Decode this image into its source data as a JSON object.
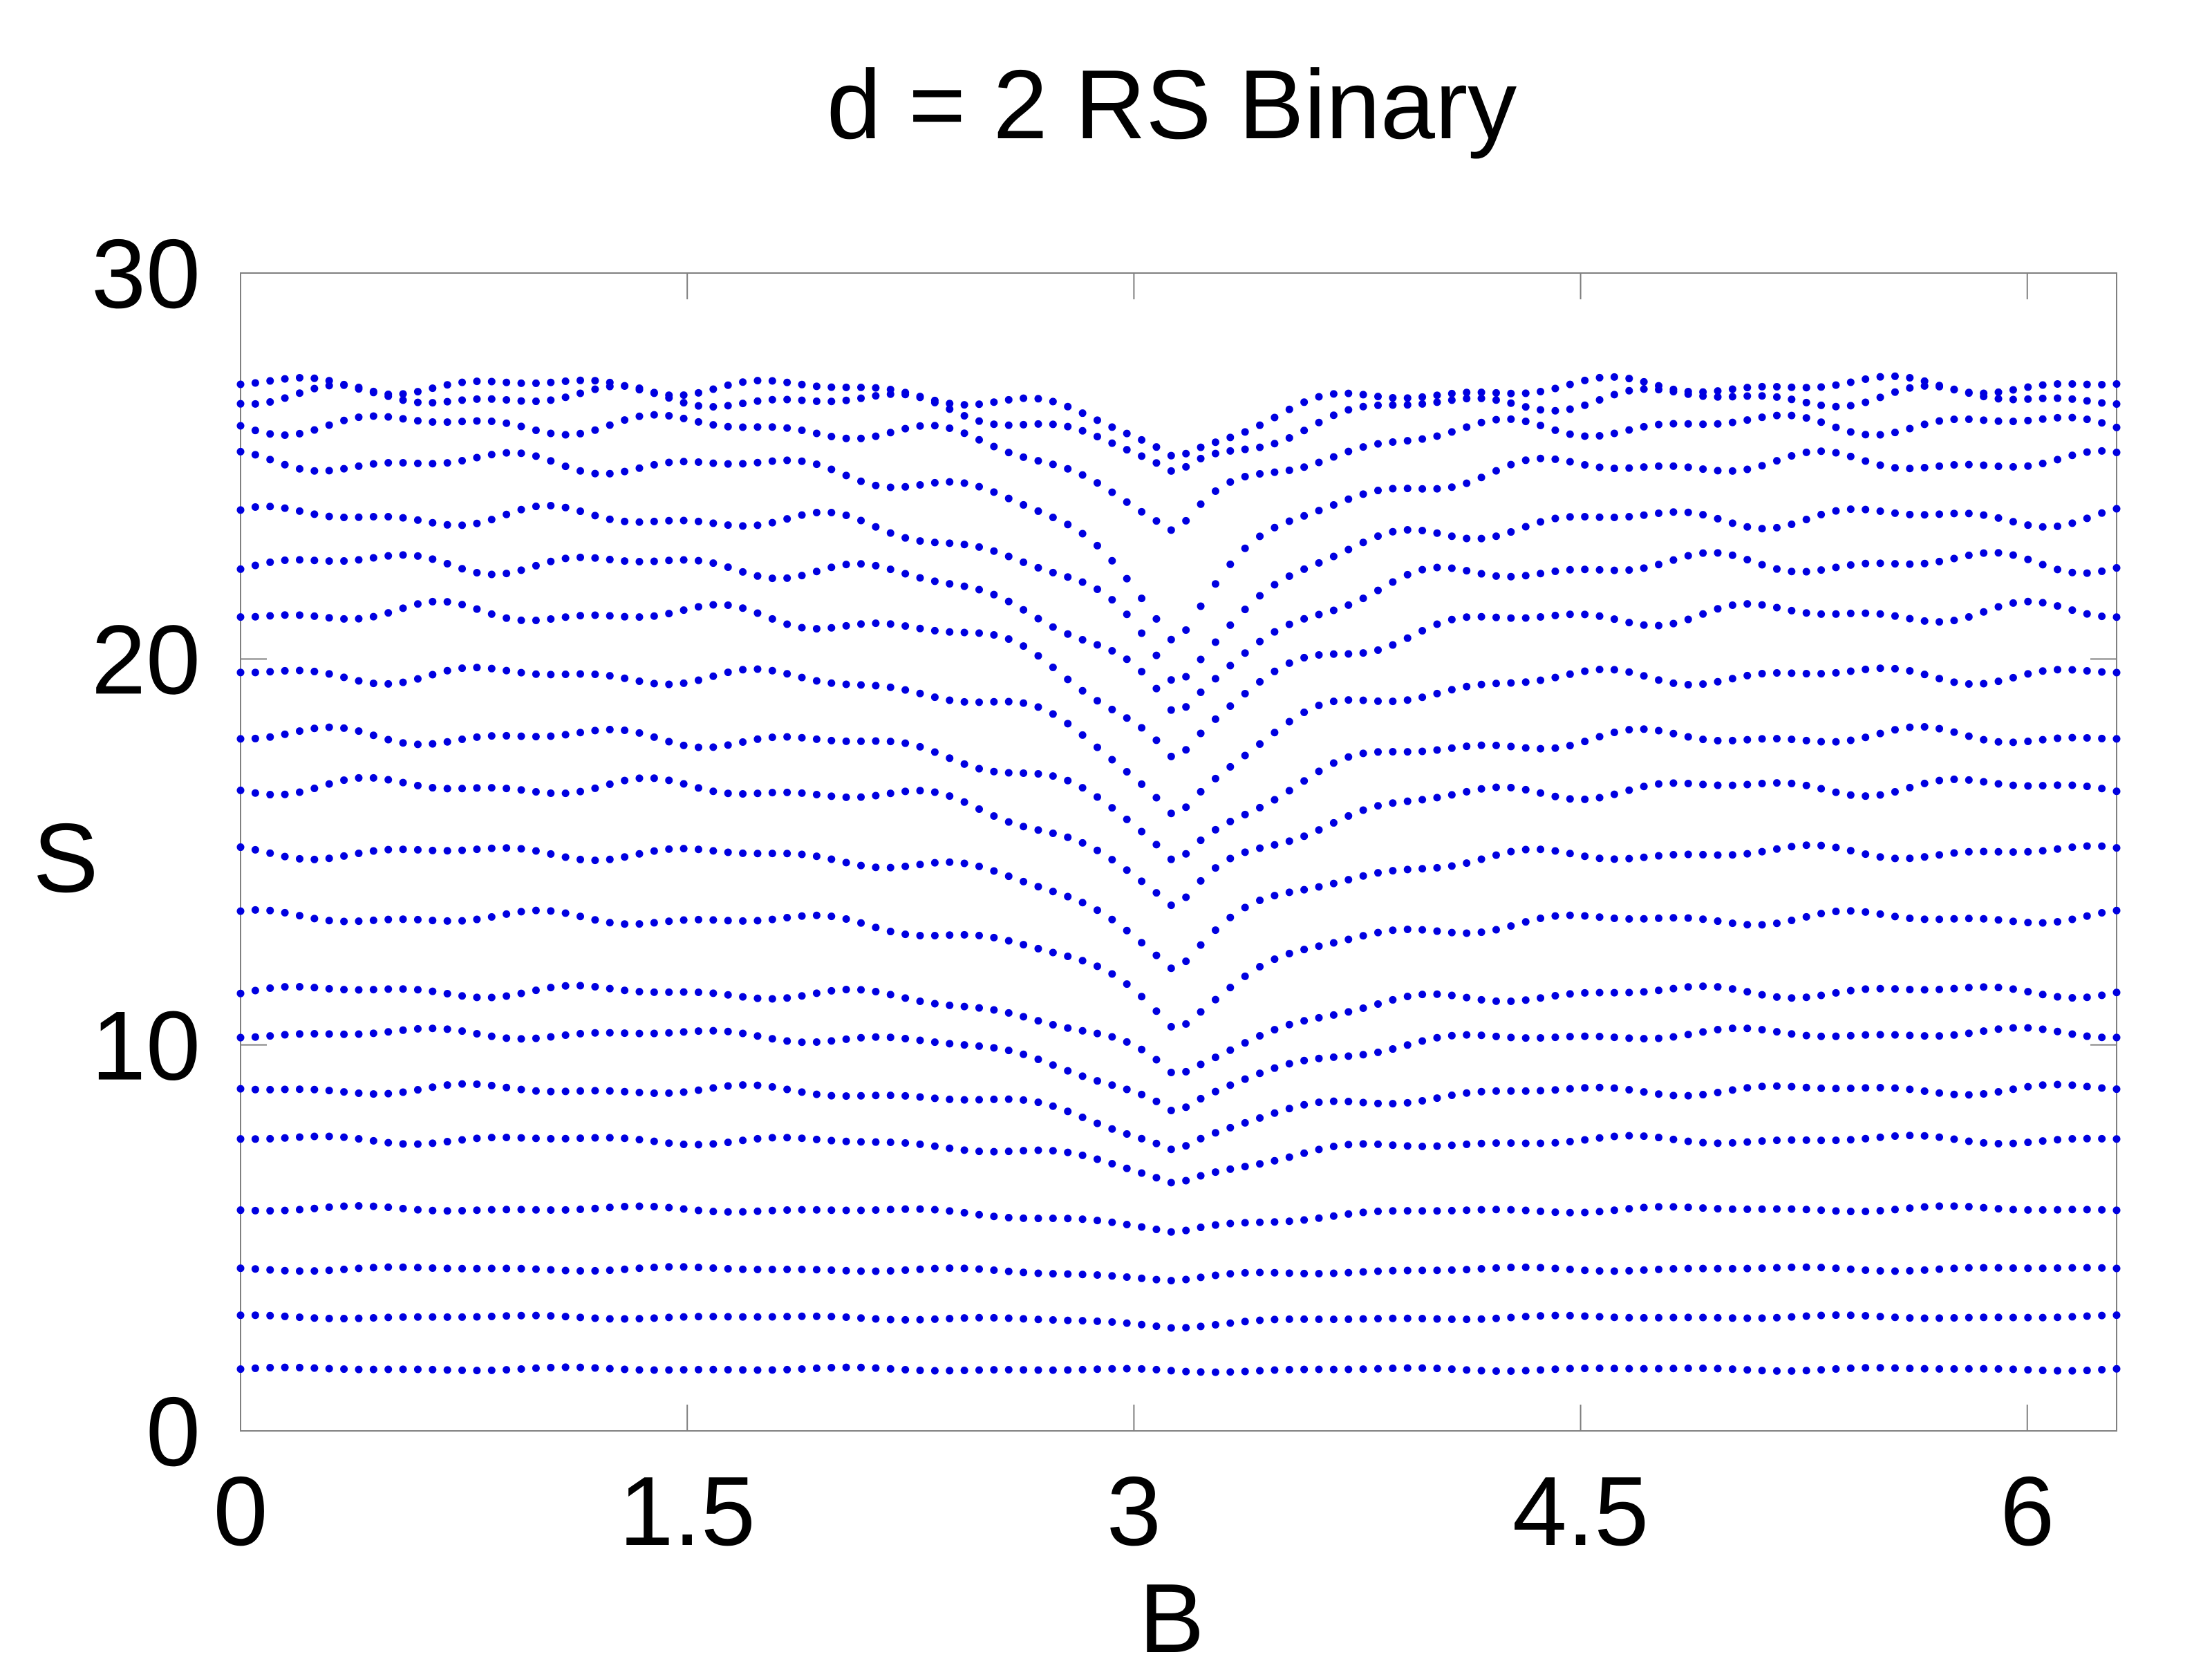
{
  "chart_data": {
    "type": "scatter",
    "title": "d = 2 RS Binary",
    "xlabel": "B",
    "ylabel": "S",
    "xlim": [
      0,
      6.3
    ],
    "ylim": [
      0,
      30
    ],
    "xticks": [
      "0",
      "1.5",
      "3",
      "4.5",
      "6"
    ],
    "xtick_values": [
      0,
      1.5,
      3,
      4.5,
      6
    ],
    "yticks": [
      "0",
      "10",
      "20",
      "30"
    ],
    "ytick_values": [
      0,
      10,
      20,
      30
    ],
    "grid": false,
    "legend": "none",
    "marker_color": "#0000e0",
    "n_points_per_band": 128,
    "bands": [
      {
        "level": 1.6,
        "dip": 0.05,
        "wiggle": 0.05
      },
      {
        "level": 2.95,
        "dip": 0.25,
        "wiggle": 0.05
      },
      {
        "level": 4.2,
        "dip": 0.3,
        "wiggle": 0.06
      },
      {
        "level": 5.75,
        "dip": 0.65,
        "wiggle": 0.08
      },
      {
        "level": 7.55,
        "dip": 1.15,
        "wiggle": 0.12
      },
      {
        "level": 8.85,
        "dip": 1.6,
        "wiggle": 0.15
      },
      {
        "level": 10.3,
        "dip": 2.2,
        "wiggle": 0.15
      },
      {
        "level": 11.4,
        "dip": 2.3,
        "wiggle": 0.18
      },
      {
        "level": 13.3,
        "dip": 2.8,
        "wiggle": 0.2
      },
      {
        "level": 15.0,
        "dip": 3.0,
        "wiggle": 0.2
      },
      {
        "level": 16.7,
        "dip": 3.3,
        "wiggle": 0.25
      },
      {
        "level": 18.0,
        "dip": 3.4,
        "wiggle": 0.25
      },
      {
        "level": 19.6,
        "dip": 3.7,
        "wiggle": 0.25
      },
      {
        "level": 21.2,
        "dip": 4.0,
        "wiggle": 0.3
      },
      {
        "level": 22.5,
        "dip": 4.2,
        "wiggle": 0.3
      },
      {
        "level": 23.7,
        "dip": 4.3,
        "wiggle": 0.3
      },
      {
        "level": 25.1,
        "dip": 4.5,
        "wiggle": 0.3
      },
      {
        "level": 26.1,
        "dip": 2.9,
        "wiggle": 0.3
      },
      {
        "level": 26.8,
        "dip": 2.2,
        "wiggle": 0.3
      },
      {
        "level": 27.1,
        "dip": 1.9,
        "wiggle": 0.25
      }
    ]
  }
}
